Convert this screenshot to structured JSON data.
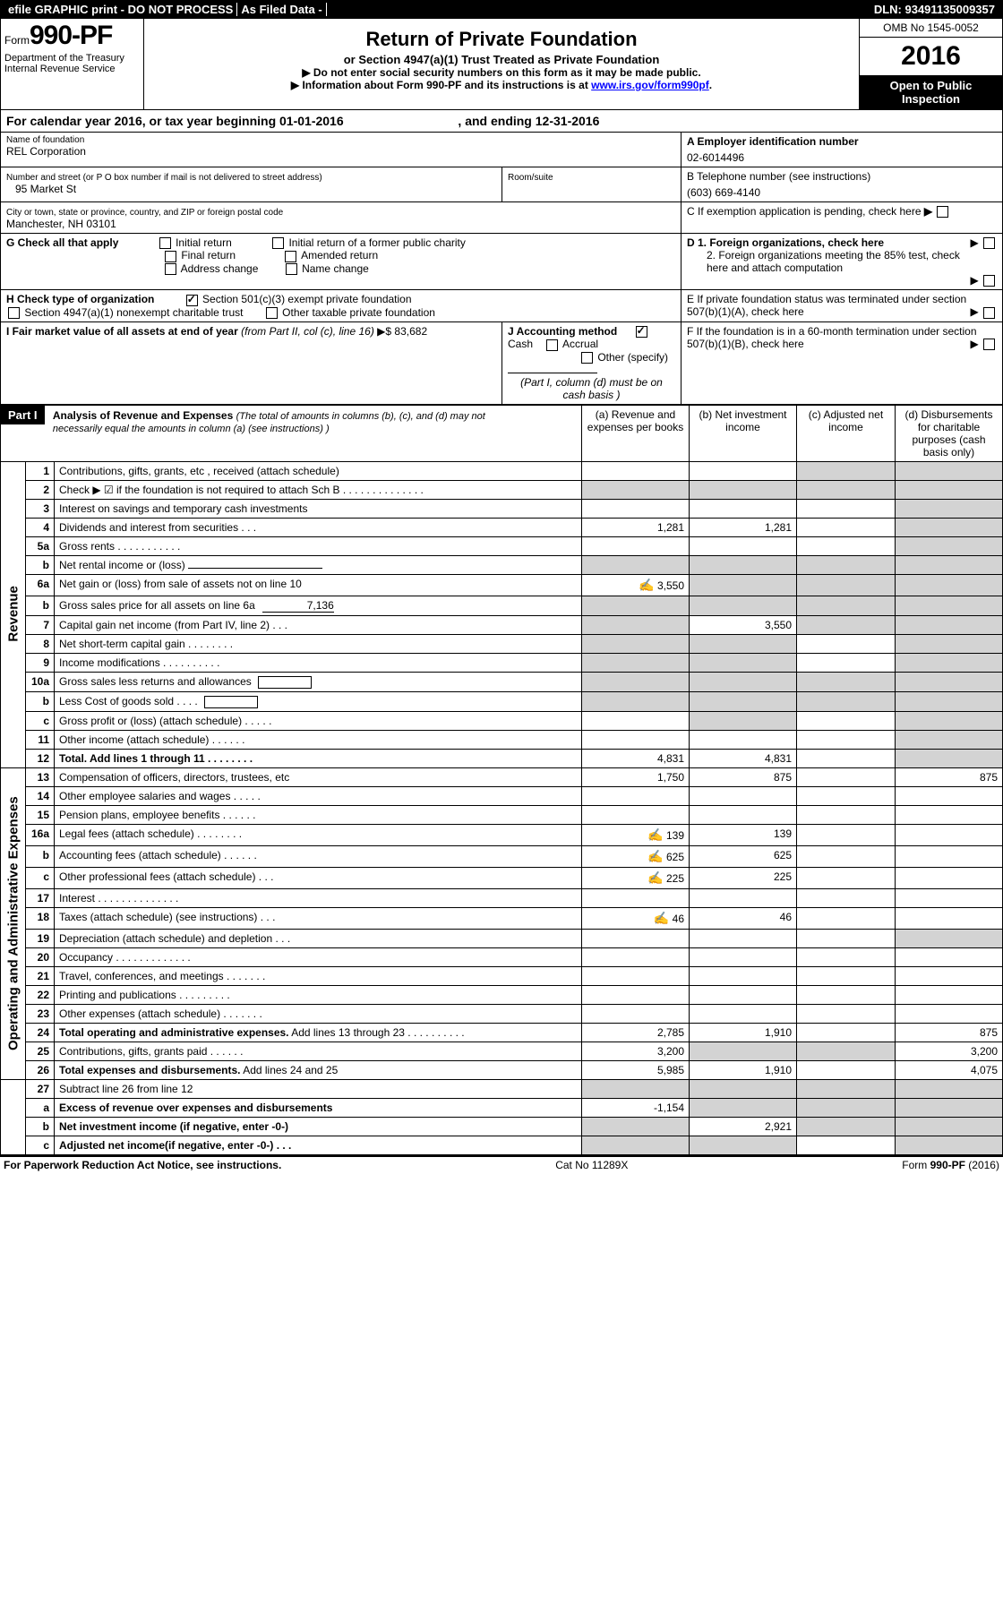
{
  "top": {
    "efile": "efile GRAPHIC print - DO NOT PROCESS",
    "asfiled": "As Filed Data -",
    "dln": "DLN: 93491135009357"
  },
  "header": {
    "form_prefix": "Form",
    "form_number": "990-PF",
    "dept": "Department of the Treasury",
    "irs": "Internal Revenue Service",
    "title": "Return of Private Foundation",
    "subtitle": "or Section 4947(a)(1) Trust Treated as Private Foundation",
    "note1": "▶ Do not enter social security numbers on this form as it may be made public.",
    "note2_pre": "▶ Information about Form 990-PF and its instructions is at ",
    "note2_link": "www.irs.gov/form990pf",
    "omb": "OMB No 1545-0052",
    "year": "2016",
    "open_public": "Open to Public Inspection"
  },
  "cal": {
    "text_pre": "For calendar year 2016, or tax year beginning ",
    "begin": "01-01-2016",
    "text_mid": ", and ending ",
    "end": "12-31-2016"
  },
  "info": {
    "name_label": "Name of foundation",
    "name": "REL Corporation",
    "ein_label": "A Employer identification number",
    "ein": "02-6014496",
    "addr_label": "Number and street (or P O  box number if mail is not delivered to street address)",
    "addr": "95 Market St",
    "room_label": "Room/suite",
    "phone_label": "B Telephone number (see instructions)",
    "phone": "(603) 669-4140",
    "city_label": "City or town, state or province, country, and ZIP or foreign postal code",
    "city": "Manchester, NH  03101",
    "c_label": "C If exemption application is pending, check here",
    "g_label": "G Check all that apply",
    "g_opts": [
      "Initial return",
      "Initial return of a former public charity",
      "Final return",
      "Amended return",
      "Address change",
      "Name change"
    ],
    "d1": "D 1. Foreign organizations, check here",
    "d2": "2. Foreign organizations meeting the 85% test, check here and attach computation",
    "h_label": "H Check type of organization",
    "h_opt1": "Section 501(c)(3) exempt private foundation",
    "h_opt2": "Section 4947(a)(1) nonexempt charitable trust",
    "h_opt3": "Other taxable private foundation",
    "e_label": "E  If private foundation status was terminated under section 507(b)(1)(A), check here",
    "i_label": "I Fair market value of all assets at end of year ",
    "i_italic": "(from Part II, col  (c), line 16)",
    "i_arrow": "▶$ ",
    "i_val": "83,682",
    "j_label": "J Accounting method",
    "j_cash": "Cash",
    "j_accrual": "Accrual",
    "j_other": "Other (specify)",
    "j_note": "(Part I, column (d) must be on cash basis )",
    "f_label": "F  If the foundation is in a 60-month termination under section 507(b)(1)(B), check here"
  },
  "part1": {
    "label": "Part I",
    "title": "Analysis of Revenue and Expenses",
    "title_note": "(The total of amounts in columns (b), (c), and (d) may not necessarily equal the amounts in column (a) (see instructions) )",
    "col_a": "(a) Revenue and expenses per books",
    "col_b": "(b) Net investment income",
    "col_c": "(c) Adjusted net income",
    "col_d": "(d) Disbursements for charitable purposes (cash basis only)"
  },
  "vert": {
    "revenue": "Revenue",
    "expenses": "Operating and Administrative Expenses"
  },
  "rows": [
    {
      "n": "1",
      "label": "Contributions, gifts, grants, etc , received (attach schedule)",
      "a": "",
      "b": "",
      "c": "shade",
      "d": "shade"
    },
    {
      "n": "2",
      "label": "Check ▶ ☑ if the foundation is not required to attach Sch B         .  .  .  .  .  .  .  .  .  .  .  .  .  .",
      "a": "shade",
      "b": "shade",
      "c": "shade",
      "d": "shade",
      "bold_not": true
    },
    {
      "n": "3",
      "label": "Interest on savings and temporary cash investments",
      "a": "",
      "b": "",
      "c": "",
      "d": "shade"
    },
    {
      "n": "4",
      "label": "Dividends and interest from securities     .  .  .",
      "a": "1,281",
      "b": "1,281",
      "c": "",
      "d": "shade"
    },
    {
      "n": "5a",
      "label": "Gross rents      .  .  .  .  .  .  .  .  .  .  .",
      "a": "",
      "b": "",
      "c": "",
      "d": "shade"
    },
    {
      "n": "b",
      "label": "Net rental income or (loss)  ",
      "a": "shade",
      "b": "shade",
      "c": "shade",
      "d": "shade",
      "has_line": true
    },
    {
      "n": "6a",
      "label": "Net gain or (loss) from sale of assets not on line 10",
      "a": "3,550",
      "b": "shade",
      "c": "shade",
      "d": "shade",
      "hand": true
    },
    {
      "n": "b",
      "label": "Gross sales price for all assets on line 6a",
      "a": "shade",
      "b": "shade",
      "c": "shade",
      "d": "shade",
      "inline_val": "7,136"
    },
    {
      "n": "7",
      "label": "Capital gain net income (from Part IV, line 2)   .  .  .",
      "a": "shade",
      "b": "3,550",
      "c": "shade",
      "d": "shade"
    },
    {
      "n": "8",
      "label": "Net short-term capital gain  .  .  .  .  .  .  .  .",
      "a": "shade",
      "b": "shade",
      "c": "",
      "d": "shade"
    },
    {
      "n": "9",
      "label": "Income modifications .  .  .  .  .  .  .  .  .  .",
      "a": "shade",
      "b": "shade",
      "c": "",
      "d": "shade"
    },
    {
      "n": "10a",
      "label": "Gross sales less returns and allowances",
      "a": "shade",
      "b": "shade",
      "c": "shade",
      "d": "shade",
      "has_box": true
    },
    {
      "n": "b",
      "label": "Less  Cost of goods sold    .  .  .  .",
      "a": "shade",
      "b": "shade",
      "c": "shade",
      "d": "shade",
      "has_box": true
    },
    {
      "n": "c",
      "label": "Gross profit or (loss) (attach schedule)   .  .  .  .  .",
      "a": "",
      "b": "shade",
      "c": "",
      "d": "shade"
    },
    {
      "n": "11",
      "label": "Other income (attach schedule)    .  .  .  .  .  .",
      "a": "",
      "b": "",
      "c": "",
      "d": "shade"
    },
    {
      "n": "12",
      "label": "Total. Add lines 1 through 11  .  .  .  .  .  .  .  .",
      "a": "4,831",
      "b": "4,831",
      "c": "",
      "d": "shade",
      "bold": true
    }
  ],
  "rows2": [
    {
      "n": "13",
      "label": "Compensation of officers, directors, trustees, etc",
      "a": "1,750",
      "b": "875",
      "c": "",
      "d": "875"
    },
    {
      "n": "14",
      "label": "Other employee salaries and wages    .  .  .  .  .",
      "a": "",
      "b": "",
      "c": "",
      "d": ""
    },
    {
      "n": "15",
      "label": "Pension plans, employee benefits  .  .  .  .  .  .",
      "a": "",
      "b": "",
      "c": "",
      "d": ""
    },
    {
      "n": "16a",
      "label": "Legal fees (attach schedule) .  .  .  .  .  .  .  .",
      "a": "139",
      "b": "139",
      "c": "",
      "d": "",
      "hand": true
    },
    {
      "n": "b",
      "label": "Accounting fees (attach schedule) .  .  .  .  .  .",
      "a": "625",
      "b": "625",
      "c": "",
      "d": "",
      "hand": true
    },
    {
      "n": "c",
      "label": "Other professional fees (attach schedule)   .  .  .",
      "a": "225",
      "b": "225",
      "c": "",
      "d": "",
      "hand": true
    },
    {
      "n": "17",
      "label": "Interest  .  .  .  .  .  .  .  .  .  .  .  .  .  .",
      "a": "",
      "b": "",
      "c": "",
      "d": ""
    },
    {
      "n": "18",
      "label": "Taxes (attach schedule) (see instructions)     .  .  .",
      "a": "46",
      "b": "46",
      "c": "",
      "d": "",
      "hand": true
    },
    {
      "n": "19",
      "label": "Depreciation (attach schedule) and depletion   .  .  .",
      "a": "",
      "b": "",
      "c": "",
      "d": "shade"
    },
    {
      "n": "20",
      "label": "Occupancy  .  .  .  .  .  .  .  .  .  .  .  .  .",
      "a": "",
      "b": "",
      "c": "",
      "d": ""
    },
    {
      "n": "21",
      "label": "Travel, conferences, and meetings .  .  .  .  .  .  .",
      "a": "",
      "b": "",
      "c": "",
      "d": ""
    },
    {
      "n": "22",
      "label": "Printing and publications .  .  .  .  .  .  .  .  .",
      "a": "",
      "b": "",
      "c": "",
      "d": ""
    },
    {
      "n": "23",
      "label": "Other expenses (attach schedule) .  .  .  .  .  .  .",
      "a": "",
      "b": "",
      "c": "",
      "d": ""
    },
    {
      "n": "24",
      "label": "Total operating and administrative expenses. Add lines 13 through 23  .  .  .  .  .  .  .  .  .  .",
      "a": "2,785",
      "b": "1,910",
      "c": "",
      "d": "875",
      "bold_first": true
    },
    {
      "n": "25",
      "label": "Contributions, gifts, grants paid     .  .  .  .  .  .",
      "a": "3,200",
      "b": "shade",
      "c": "shade",
      "d": "3,200"
    },
    {
      "n": "26",
      "label": "Total expenses and disbursements. Add lines 24 and 25",
      "a": "5,985",
      "b": "1,910",
      "c": "",
      "d": "4,075",
      "bold_first": true
    }
  ],
  "rows3": [
    {
      "n": "27",
      "label": "Subtract line 26 from line 12",
      "a": "shade",
      "b": "shade",
      "c": "shade",
      "d": "shade"
    },
    {
      "n": "a",
      "label": "Excess of revenue over expenses and disbursements",
      "a": "-1,154",
      "b": "shade",
      "c": "shade",
      "d": "shade",
      "bold": true
    },
    {
      "n": "b",
      "label": "Net investment income (if negative, enter -0-)",
      "a": "shade",
      "b": "2,921",
      "c": "shade",
      "d": "shade",
      "bold": true
    },
    {
      "n": "c",
      "label": "Adjusted net income(if negative, enter -0-)   .  .  .",
      "a": "shade",
      "b": "shade",
      "c": "",
      "d": "shade",
      "bold": true
    }
  ],
  "footer": {
    "left": "For Paperwork Reduction Act Notice, see instructions.",
    "mid": "Cat  No  11289X",
    "right": "Form 990-PF (2016)"
  }
}
